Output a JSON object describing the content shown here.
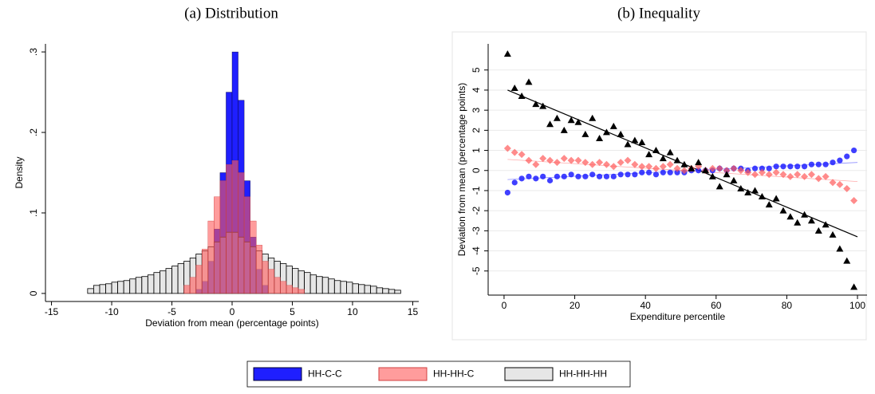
{
  "chart_data": [
    {
      "type": "histogram",
      "title": "(a) Distribution",
      "x_label": "Deviation from mean (percentage points)",
      "y_label": "Density",
      "xlim": [
        -15.5,
        15.5
      ],
      "xticks": [
        -15,
        -10,
        -5,
        0,
        5,
        10,
        15
      ],
      "ylim": [
        -0.01,
        0.31
      ],
      "yticks": [
        0,
        {
          "value": 0.1,
          "label": ".1"
        },
        {
          "value": 0.2,
          "label": ".2"
        },
        {
          "value": 0.3,
          "label": ".3"
        }
      ],
      "series": [
        {
          "name": "HH-C-C",
          "color": "#1f1fff",
          "bins": [
            -3,
            -2.5,
            -2,
            -1.5,
            -1,
            -0.5,
            0,
            0.5,
            1,
            1.5,
            2,
            2.5,
            3
          ],
          "values": [
            0.005,
            0.015,
            0.04,
            0.08,
            0.15,
            0.25,
            0.3,
            0.24,
            0.14,
            0.07,
            0.03,
            0.01
          ]
        },
        {
          "name": "HH-HH-C",
          "color": "#ff5a5a",
          "bins": [
            -4,
            -3.5,
            -3,
            -2.5,
            -2,
            -1.5,
            -1,
            -0.5,
            0,
            0.5,
            1,
            1.5,
            2,
            2.5,
            3,
            3.5,
            4,
            4.5,
            5,
            5.5,
            6
          ],
          "values": [
            0.01,
            0.02,
            0.035,
            0.055,
            0.09,
            0.12,
            0.14,
            0.16,
            0.165,
            0.15,
            0.12,
            0.09,
            0.06,
            0.04,
            0.03,
            0.02,
            0.015,
            0.01,
            0.007,
            0.005
          ]
        },
        {
          "name": "HH-HH-HH",
          "color": "#c8c8c8",
          "bins": [
            -12,
            -11.5,
            -11,
            -10.5,
            -10,
            -9.5,
            -9,
            -8.5,
            -8,
            -7.5,
            -7,
            -6.5,
            -6,
            -5.5,
            -5,
            -4.5,
            -4,
            -3.5,
            -3,
            -2.5,
            -2,
            -1.5,
            -1,
            -0.5,
            0,
            0.5,
            1,
            1.5,
            2,
            2.5,
            3,
            3.5,
            4,
            4.5,
            5,
            5.5,
            6,
            6.5,
            7,
            7.5,
            8,
            8.5,
            9,
            9.5,
            10,
            10.5,
            11,
            11.5,
            12,
            12.5,
            13,
            13.5,
            14
          ],
          "values": [
            0.006,
            0.01,
            0.011,
            0.012,
            0.014,
            0.015,
            0.016,
            0.018,
            0.02,
            0.021,
            0.023,
            0.026,
            0.028,
            0.031,
            0.034,
            0.037,
            0.04,
            0.044,
            0.049,
            0.053,
            0.058,
            0.064,
            0.07,
            0.076,
            0.076,
            0.07,
            0.064,
            0.058,
            0.053,
            0.049,
            0.044,
            0.04,
            0.037,
            0.034,
            0.031,
            0.028,
            0.026,
            0.023,
            0.021,
            0.02,
            0.018,
            0.016,
            0.015,
            0.014,
            0.012,
            0.011,
            0.01,
            0.009,
            0.007,
            0.006,
            0.005,
            0.004
          ]
        }
      ]
    },
    {
      "type": "scatter",
      "title": "(b) Inequality",
      "x_label": "Expenditure percentile",
      "y_label": "Deviation from mean (percentage points)",
      "xlim": [
        -4.5,
        102.7
      ],
      "xticks": [
        0,
        20,
        40,
        60,
        80,
        100
      ],
      "ylim": [
        -6.2,
        6.3
      ],
      "yticks": [
        -5,
        -4,
        -3,
        -2,
        -1,
        0,
        1,
        2,
        3,
        4,
        5
      ],
      "grid": true,
      "x": [
        1,
        3,
        5,
        7,
        9,
        11,
        13,
        15,
        17,
        19,
        21,
        23,
        25,
        27,
        29,
        31,
        33,
        35,
        37,
        39,
        41,
        43,
        45,
        47,
        49,
        51,
        53,
        55,
        57,
        59,
        61,
        63,
        65,
        67,
        69,
        71,
        73,
        75,
        77,
        79,
        81,
        83,
        85,
        87,
        89,
        91,
        93,
        95,
        97,
        99
      ],
      "series": [
        {
          "color": "#1f1fff",
          "marker": "circle",
          "values": [
            -1.1,
            -0.6,
            -0.4,
            -0.3,
            -0.4,
            -0.3,
            -0.5,
            -0.3,
            -0.3,
            -0.2,
            -0.3,
            -0.3,
            -0.2,
            -0.3,
            -0.3,
            -0.3,
            -0.2,
            -0.2,
            -0.2,
            -0.1,
            -0.1,
            -0.2,
            -0.1,
            -0.1,
            -0.1,
            -0.1,
            0.0,
            0.0,
            0.0,
            0.0,
            0.1,
            0.0,
            0.1,
            0.1,
            0.0,
            0.1,
            0.1,
            0.1,
            0.2,
            0.2,
            0.2,
            0.2,
            0.2,
            0.3,
            0.3,
            0.3,
            0.4,
            0.5,
            0.7,
            1.0
          ],
          "fit": {
            "x": [
              1,
              100
            ],
            "values": [
              -0.45,
              0.4
            ]
          }
        },
        {
          "color": "#ff5a5a",
          "marker": "diamond",
          "values": [
            1.1,
            0.9,
            0.8,
            0.5,
            0.3,
            0.6,
            0.5,
            0.4,
            0.6,
            0.5,
            0.5,
            0.4,
            0.3,
            0.4,
            0.3,
            0.2,
            0.4,
            0.5,
            0.3,
            0.2,
            0.2,
            0.1,
            0.2,
            0.3,
            0.1,
            0.0,
            0.1,
            0.2,
            0.0,
            0.1,
            0.1,
            0.0,
            0.1,
            0.0,
            -0.1,
            -0.2,
            -0.1,
            -0.2,
            -0.1,
            -0.2,
            -0.3,
            -0.2,
            -0.3,
            -0.2,
            -0.4,
            -0.3,
            -0.6,
            -0.7,
            -0.9,
            -1.5
          ],
          "fit": {
            "x": [
              1,
              100
            ],
            "values": [
              0.55,
              -0.55
            ]
          }
        },
        {
          "color": "#000000",
          "marker": "triangle",
          "values": [
            5.8,
            4.1,
            3.7,
            4.4,
            3.3,
            3.2,
            2.3,
            2.6,
            2.0,
            2.5,
            2.4,
            1.8,
            2.6,
            1.6,
            1.9,
            2.2,
            1.8,
            1.3,
            1.5,
            1.4,
            0.8,
            1.0,
            0.6,
            0.9,
            0.5,
            0.3,
            0.1,
            0.4,
            0.0,
            -0.3,
            -0.8,
            -0.2,
            -0.5,
            -0.9,
            -1.1,
            -1.0,
            -1.3,
            -1.7,
            -1.4,
            -2.0,
            -2.3,
            -2.6,
            -2.2,
            -2.5,
            -3.0,
            -2.7,
            -3.2,
            -3.9,
            -4.5,
            -5.8
          ],
          "fit": {
            "x": [
              1,
              100
            ],
            "values": [
              4.0,
              -3.3
            ]
          }
        }
      ]
    }
  ]
}
